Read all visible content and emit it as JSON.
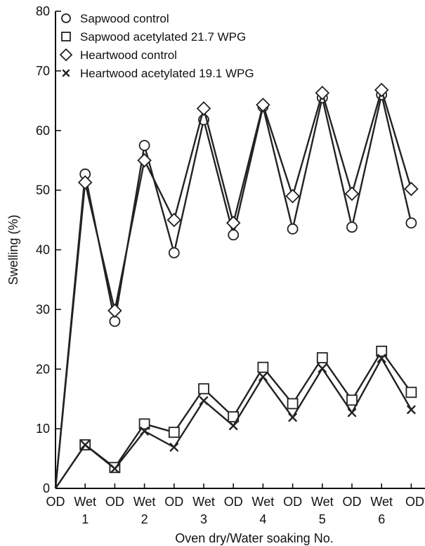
{
  "chart_data": {
    "type": "line",
    "xlabel": "Oven dry/Water soaking No.",
    "ylabel": "Swelling (%)",
    "ylim": [
      0,
      80
    ],
    "yticks": [
      0,
      10,
      20,
      30,
      40,
      50,
      60,
      70,
      80
    ],
    "x_tick_labels": [
      "OD",
      "Wet",
      "OD",
      "Wet",
      "OD",
      "Wet",
      "OD",
      "Wet",
      "OD",
      "Wet",
      "OD",
      "Wet",
      "OD"
    ],
    "cycle_labels": [
      "1",
      "2",
      "3",
      "4",
      "5",
      "6"
    ],
    "grid": false,
    "legend_position": "top-left",
    "series": [
      {
        "name": "Sapwood control",
        "marker": "circle",
        "values": [
          0,
          52.7,
          28,
          57.5,
          39.5,
          61.8,
          42.5,
          64,
          43.5,
          65.5,
          43.8,
          66,
          44.5
        ]
      },
      {
        "name": "Sapwood acetylated  21.7 WPG",
        "marker": "square",
        "values": [
          0,
          7.3,
          3.5,
          10.8,
          9.4,
          16.7,
          12,
          20.3,
          14.2,
          21.9,
          14.8,
          23,
          16.1
        ]
      },
      {
        "name": "Heartwood control",
        "marker": "diamond",
        "values": [
          0,
          51.3,
          29.8,
          55,
          45,
          63.7,
          44.5,
          64.3,
          49,
          66.3,
          49.4,
          66.8,
          50.2
        ]
      },
      {
        "name": "Heartwood acetylated 19.1 WPG",
        "marker": "x",
        "values": [
          0,
          7.3,
          3.3,
          9.6,
          6.9,
          14.7,
          10.5,
          18.7,
          11.9,
          20.1,
          12.7,
          21.8,
          13.2
        ]
      }
    ]
  }
}
